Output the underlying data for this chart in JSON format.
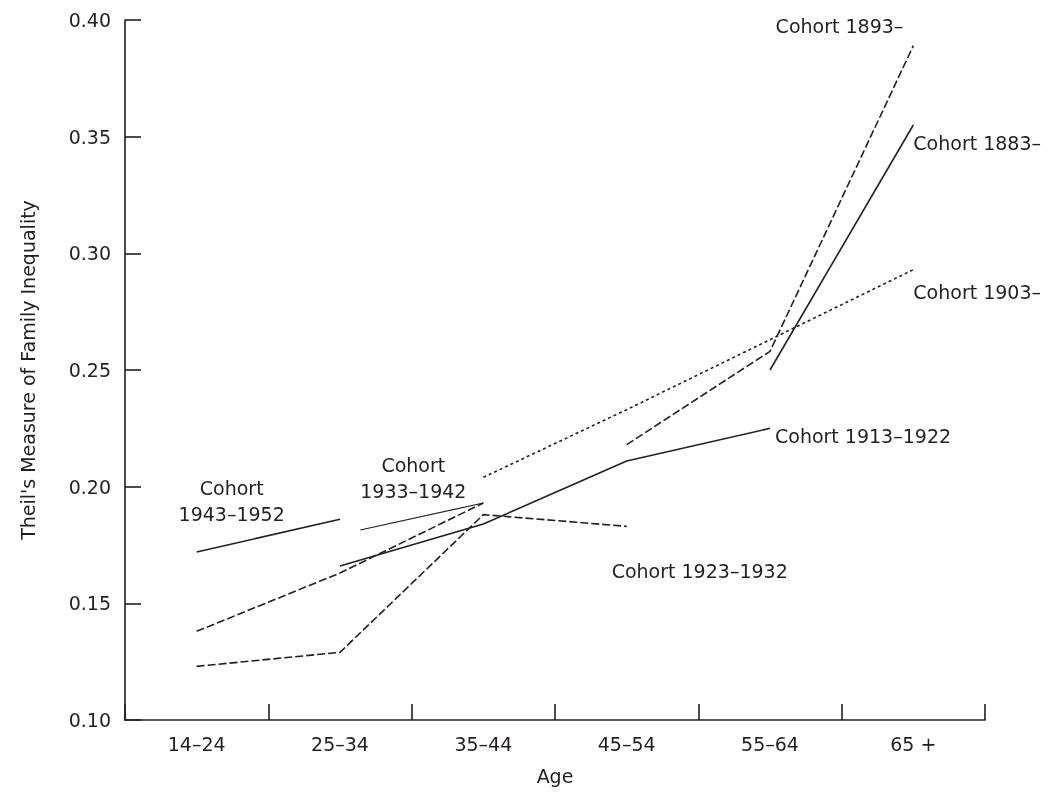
{
  "chart_data": {
    "type": "line",
    "xlabel": "Age",
    "ylabel": "Theil's Measure of Family Inequality",
    "categories": [
      "14–24",
      "25–34",
      "35–44",
      "45–54",
      "55–64",
      "65 +"
    ],
    "ylim": [
      0.1,
      0.4
    ],
    "yticks": [
      {
        "value": 0.1,
        "label": "0.10"
      },
      {
        "value": 0.15,
        "label": "0.15"
      },
      {
        "value": 0.2,
        "label": "0.20"
      },
      {
        "value": 0.25,
        "label": "0.25"
      },
      {
        "value": 0.3,
        "label": "0.30"
      },
      {
        "value": 0.35,
        "label": "0.35"
      },
      {
        "value": 0.4,
        "label": "0.40"
      }
    ],
    "grid": false,
    "legend": false,
    "marker": "none",
    "series": [
      {
        "name": "Cohort 1943–1952",
        "color": "#231f20",
        "line_style": "solid",
        "values": [
          0.172,
          0.186,
          null,
          null,
          null,
          null
        ]
      },
      {
        "name": "Cohort 1933–1942",
        "color": "#231f20",
        "line_style": "dashed",
        "values": [
          0.138,
          0.163,
          0.193,
          null,
          null,
          null
        ]
      },
      {
        "name": "Cohort 1923–1932",
        "color": "#231f20",
        "line_style": "dashed",
        "values": [
          0.123,
          0.129,
          0.188,
          0.183,
          null,
          null
        ]
      },
      {
        "name": "Cohort 1913–1922",
        "color": "#231f20",
        "line_style": "solid",
        "values": [
          null,
          0.166,
          0.184,
          0.211,
          0.225,
          null
        ]
      },
      {
        "name": "Cohort 1903–",
        "color": "#231f20",
        "line_style": "dotted",
        "values": [
          null,
          null,
          0.204,
          0.233,
          0.263,
          0.293
        ]
      },
      {
        "name": "Cohort 1893–",
        "color": "#231f20",
        "line_style": "dashed",
        "values": [
          null,
          null,
          null,
          0.218,
          0.258,
          0.389
        ]
      },
      {
        "name": "Cohort 1883–",
        "color": "#231f20",
        "line_style": "solid",
        "values": [
          null,
          null,
          null,
          null,
          0.25,
          0.355
        ]
      }
    ]
  }
}
